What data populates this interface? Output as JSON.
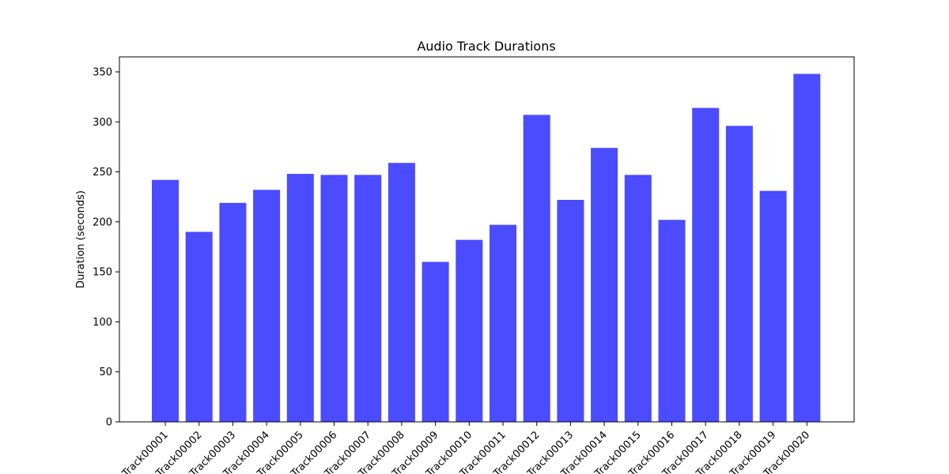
{
  "chart_data": {
    "type": "bar",
    "title": "Audio Track Durations",
    "xlabel": "",
    "ylabel": "Duration (seconds)",
    "categories": [
      "Track00001",
      "Track00002",
      "Track00003",
      "Track00004",
      "Track00005",
      "Track00006",
      "Track00007",
      "Track00008",
      "Track00009",
      "Track00010",
      "Track00011",
      "Track00012",
      "Track00013",
      "Track00014",
      "Track00015",
      "Track00016",
      "Track00017",
      "Track00018",
      "Track00019",
      "Track00020"
    ],
    "values": [
      242,
      190,
      219,
      232,
      248,
      247,
      247,
      259,
      160,
      182,
      197,
      307,
      222,
      274,
      247,
      202,
      314,
      296,
      231,
      348
    ],
    "ylim": [
      0,
      365
    ],
    "yticks": [
      0,
      50,
      100,
      150,
      200,
      250,
      300,
      350
    ],
    "bar_color": "#4b4bff",
    "grid": false,
    "legend": "none"
  }
}
